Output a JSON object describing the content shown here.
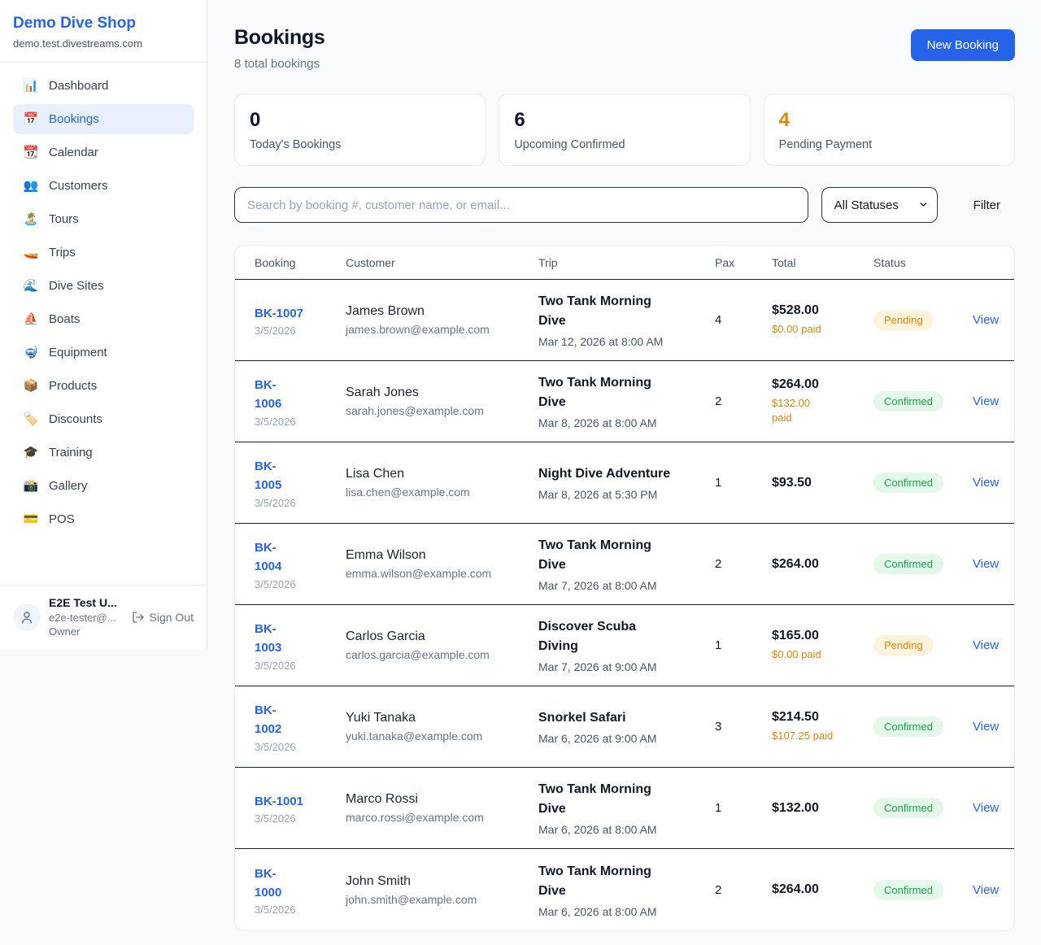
{
  "colors": {
    "accent": "#2563eb",
    "orange": "#dd8609",
    "green": "#16a34a",
    "pending_badge_bg": "#fdf3dd",
    "confirmed_badge_bg": "#e4f7eb",
    "page_bg": "#f8fafc"
  },
  "sidebar": {
    "brand": "Demo Dive Shop",
    "domain": "demo.test.divestreams.com",
    "items": [
      {
        "icon": "📊",
        "icon_name": "bar-chart-icon",
        "label": "Dashboard",
        "active": false
      },
      {
        "icon": "📅",
        "icon_name": "calendar-17-icon",
        "label": "Bookings",
        "active": true
      },
      {
        "icon": "📆",
        "icon_name": "tear-off-calendar-icon",
        "label": "Calendar",
        "active": false
      },
      {
        "icon": "👥",
        "icon_name": "people-icon",
        "label": "Customers",
        "active": false
      },
      {
        "icon": "🏝️",
        "icon_name": "island-icon",
        "label": "Tours",
        "active": false
      },
      {
        "icon": "🚤",
        "icon_name": "speedboat-icon",
        "label": "Trips",
        "active": false
      },
      {
        "icon": "🌊",
        "icon_name": "wave-icon",
        "label": "Dive Sites",
        "active": false
      },
      {
        "icon": "⛵",
        "icon_name": "sailboat-icon",
        "label": "Boats",
        "active": false
      },
      {
        "icon": "🤿",
        "icon_name": "diving-mask-icon",
        "label": "Equipment",
        "active": false
      },
      {
        "icon": "📦",
        "icon_name": "package-icon",
        "label": "Products",
        "active": false
      },
      {
        "icon": "🏷️",
        "icon_name": "tag-icon",
        "label": "Discounts",
        "active": false
      },
      {
        "icon": "🎓",
        "icon_name": "graduation-cap-icon",
        "label": "Training",
        "active": false
      },
      {
        "icon": "📸",
        "icon_name": "camera-icon",
        "label": "Gallery",
        "active": false
      },
      {
        "icon": "💳",
        "icon_name": "credit-card-icon",
        "label": "POS",
        "active": false
      }
    ],
    "user": {
      "name": "E2E Test U...",
      "email": "e2e-tester@...",
      "role": "Owner",
      "sign_out": "Sign Out"
    }
  },
  "header": {
    "title": "Bookings",
    "subtitle": "8 total bookings",
    "new_booking": "New Booking"
  },
  "stats": [
    {
      "value": "0",
      "label": "Today's Bookings",
      "highlight": false
    },
    {
      "value": "6",
      "label": "Upcoming Confirmed",
      "highlight": false
    },
    {
      "value": "4",
      "label": "Pending Payment",
      "highlight": true
    }
  ],
  "filters": {
    "search_placeholder": "Search by booking #, customer name, or email...",
    "status_select": "All Statuses",
    "filter_label": "Filter"
  },
  "table": {
    "headers": [
      "Booking",
      "Customer",
      "Trip",
      "Pax",
      "Total",
      "Status",
      ""
    ],
    "action_label": "View",
    "rows": [
      {
        "id": "BK-1007",
        "date": "3/5/2026",
        "customer": "James Brown",
        "email": "james.brown@example.com",
        "trip": "Two Tank Morning\nDive",
        "trip_date": "Mar 12, 2026 at 8:00 AM",
        "pax": "4",
        "total": "$528.00",
        "paid": "$0.00 paid",
        "status": "Pending"
      },
      {
        "id": "BK-\n1006",
        "date": "3/5/2026",
        "customer": "Sarah Jones",
        "email": "sarah.jones@example.com",
        "trip": "Two Tank Morning\nDive",
        "trip_date": "Mar 8, 2026 at 8:00 AM",
        "pax": "2",
        "total": "$264.00",
        "paid": "$132.00\npaid",
        "status": "Confirmed"
      },
      {
        "id": "BK-\n1005",
        "date": "3/5/2026",
        "customer": "Lisa Chen",
        "email": "lisa.chen@example.com",
        "trip": "Night Dive Adventure",
        "trip_date": "Mar 8, 2026 at 5:30 PM",
        "pax": "1",
        "total": "$93.50",
        "paid": "",
        "status": "Confirmed"
      },
      {
        "id": "BK-\n1004",
        "date": "3/5/2026",
        "customer": "Emma Wilson",
        "email": "emma.wilson@example.com",
        "trip": "Two Tank Morning\nDive",
        "trip_date": "Mar 7, 2026 at 8:00 AM",
        "pax": "2",
        "total": "$264.00",
        "paid": "",
        "status": "Confirmed"
      },
      {
        "id": "BK-\n1003",
        "date": "3/5/2026",
        "customer": "Carlos Garcia",
        "email": "carlos.garcia@example.com",
        "trip": "Discover Scuba\nDiving",
        "trip_date": "Mar 7, 2026 at 9:00 AM",
        "pax": "1",
        "total": "$165.00",
        "paid": "$0.00 paid",
        "status": "Pending"
      },
      {
        "id": "BK-\n1002",
        "date": "3/5/2026",
        "customer": "Yuki Tanaka",
        "email": "yuki.tanaka@example.com",
        "trip": "Snorkel Safari",
        "trip_date": "Mar 6, 2026 at 9:00 AM",
        "pax": "3",
        "total": "$214.50",
        "paid": "$107.25 paid",
        "status": "Confirmed"
      },
      {
        "id": "BK-1001",
        "date": "3/5/2026",
        "customer": "Marco Rossi",
        "email": "marco.rossi@example.com",
        "trip": "Two Tank Morning\nDive",
        "trip_date": "Mar 6, 2026 at 8:00 AM",
        "pax": "1",
        "total": "$132.00",
        "paid": "",
        "status": "Confirmed"
      },
      {
        "id": "BK-\n1000",
        "date": "3/5/2026",
        "customer": "John Smith",
        "email": "john.smith@example.com",
        "trip": "Two Tank Morning\nDive",
        "trip_date": "Mar 6, 2026 at 8:00 AM",
        "pax": "2",
        "total": "$264.00",
        "paid": "",
        "status": "Confirmed"
      }
    ]
  }
}
